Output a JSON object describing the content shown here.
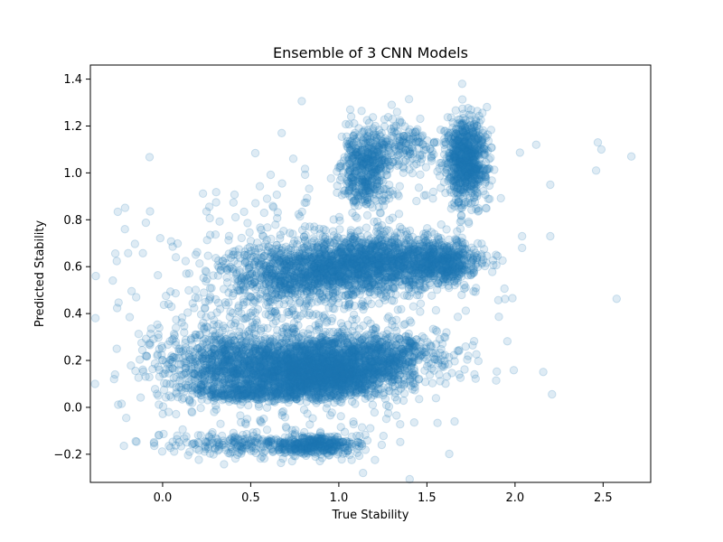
{
  "chart_data": {
    "type": "scatter",
    "title": "Ensemble of 3 CNN Models",
    "xlabel": "True Stability",
    "ylabel": "Predicted Stability",
    "xlim": [
      -0.41,
      2.77
    ],
    "ylim": [
      -0.32,
      1.46
    ],
    "x_ticks": [
      0.0,
      0.5,
      1.0,
      1.5,
      2.0,
      2.5
    ],
    "x_tick_labels": [
      "0.0",
      "0.5",
      "1.0",
      "1.5",
      "2.0",
      "2.5"
    ],
    "y_ticks": [
      -0.2,
      0.0,
      0.2,
      0.4,
      0.6,
      0.8,
      1.0,
      1.2,
      1.4
    ],
    "y_tick_labels": [
      "−0.2",
      "0.0",
      "0.2",
      "0.4",
      "0.6",
      "0.8",
      "1.0",
      "1.2",
      "1.4"
    ],
    "grid": false,
    "marker_color": "#1f77b4",
    "marker_alpha": 0.15,
    "clusters": [
      {
        "cx": 0.75,
        "cy": 0.18,
        "sx": 0.32,
        "sy": 0.06,
        "n": 1800
      },
      {
        "cx": 0.9,
        "cy": 0.12,
        "sx": 0.2,
        "sy": 0.04,
        "n": 900
      },
      {
        "cx": 1.15,
        "cy": 0.22,
        "sx": 0.2,
        "sy": 0.05,
        "n": 700
      },
      {
        "cx": 0.35,
        "cy": 0.2,
        "sx": 0.15,
        "sy": 0.08,
        "n": 300
      },
      {
        "cx": 0.55,
        "cy": 0.06,
        "sx": 0.25,
        "sy": 0.015,
        "n": 300
      },
      {
        "cx": 1.25,
        "cy": 0.62,
        "sx": 0.22,
        "sy": 0.06,
        "n": 1200
      },
      {
        "cx": 0.9,
        "cy": 0.58,
        "sx": 0.2,
        "sy": 0.06,
        "n": 700
      },
      {
        "cx": 1.6,
        "cy": 0.62,
        "sx": 0.1,
        "sy": 0.04,
        "n": 400
      },
      {
        "cx": 0.6,
        "cy": 0.55,
        "sx": 0.15,
        "sy": 0.06,
        "n": 250
      },
      {
        "cx": 1.15,
        "cy": 1.03,
        "sx": 0.07,
        "sy": 0.08,
        "n": 500
      },
      {
        "cx": 1.72,
        "cy": 1.05,
        "sx": 0.06,
        "sy": 0.09,
        "n": 800
      },
      {
        "cx": 1.38,
        "cy": 1.12,
        "sx": 0.08,
        "sy": 0.05,
        "n": 150
      },
      {
        "cx": 0.85,
        "cy": -0.16,
        "sx": 0.12,
        "sy": 0.02,
        "n": 350
      },
      {
        "cx": 0.5,
        "cy": -0.16,
        "sx": 0.3,
        "sy": 0.025,
        "n": 250
      },
      {
        "cx": 0.7,
        "cy": 0.4,
        "sx": 0.5,
        "sy": 0.3,
        "n": 800
      }
    ],
    "outliers": [
      {
        "x": -0.26,
        "y": 0.25
      },
      {
        "x": -0.27,
        "y": 0.14
      },
      {
        "x": -0.15,
        "y": 0.47
      },
      {
        "x": 2.12,
        "y": 1.12
      },
      {
        "x": 2.47,
        "y": 1.13
      },
      {
        "x": 2.49,
        "y": 1.1
      },
      {
        "x": 2.46,
        "y": 1.01
      },
      {
        "x": 2.66,
        "y": 1.07
      },
      {
        "x": 2.2,
        "y": 0.95
      },
      {
        "x": 2.2,
        "y": 0.73
      },
      {
        "x": 2.04,
        "y": 0.73
      },
      {
        "x": 2.04,
        "y": 0.68
      },
      {
        "x": 1.7,
        "y": 1.38
      },
      {
        "x": 1.3,
        "y": 1.29
      },
      {
        "x": 1.07,
        "y": 1.24
      }
    ]
  }
}
